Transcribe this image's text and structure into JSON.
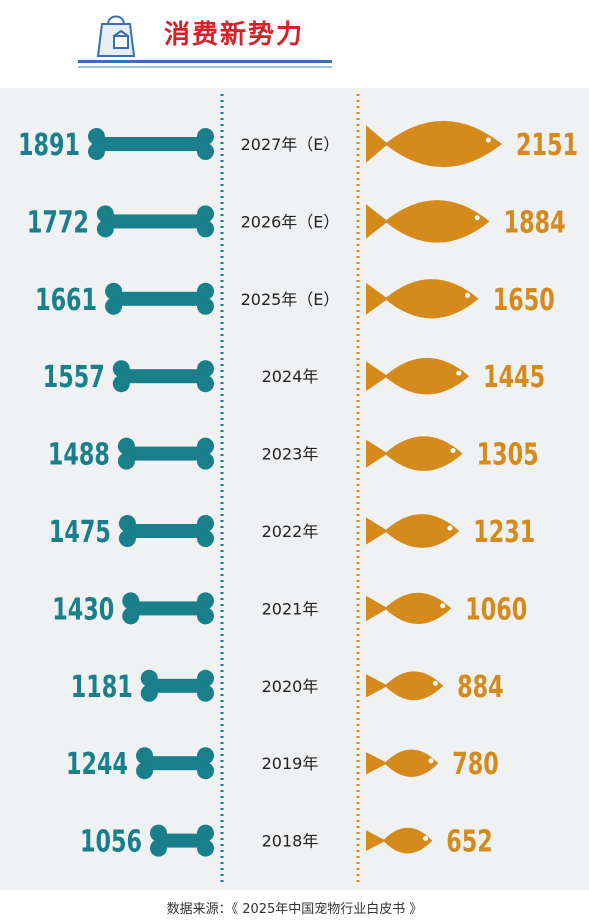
{
  "header": {
    "title": "消费新势力"
  },
  "chart_data": {
    "type": "bar",
    "categories": [
      "2027年（E）",
      "2026年（E）",
      "2025年（E）",
      "2024年",
      "2023年",
      "2022年",
      "2021年",
      "2020年",
      "2019年",
      "2018年"
    ],
    "series": [
      {
        "values": [
          1891,
          1772,
          1661,
          1557,
          1488,
          1475,
          1430,
          1181,
          1244,
          1056
        ]
      },
      {
        "values": [
          2151,
          1884,
          1650,
          1445,
          1305,
          1231,
          1060,
          884,
          780,
          652
        ]
      }
    ],
    "colors": {
      "bone": "#197f8a",
      "fish": "#d58b1c",
      "divider_left": "#197f8a",
      "divider_right": "#d58b1c"
    }
  },
  "footer": {
    "source": "数据来源：《 2025年中国宠物行业白皮书 》"
  }
}
